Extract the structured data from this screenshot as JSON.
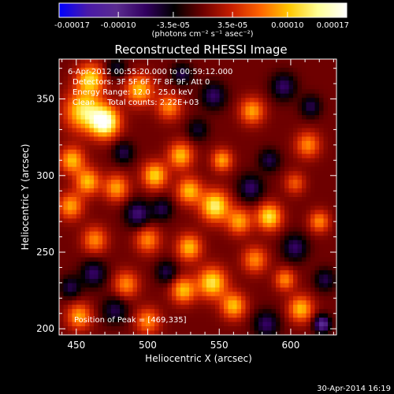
{
  "chart_data": {
    "type": "heatmap",
    "title": "Reconstructed RHESSI Image",
    "xlabel": "Heliocentric X (arcsec)",
    "ylabel": "Heliocentric Y (arcsec)",
    "xlim": [
      438,
      632
    ],
    "ylim": [
      196,
      376
    ],
    "x_ticks": [
      450,
      500,
      550,
      600
    ],
    "y_ticks": [
      200,
      250,
      300,
      350
    ],
    "x_tick_labels": [
      "450",
      "500",
      "550",
      "600"
    ],
    "y_tick_labels": [
      "200",
      "250",
      "300",
      "350"
    ],
    "colorbar": {
      "range": [
        -0.00017,
        0.00017
      ],
      "ticks": [
        -0.00017,
        -0.0001,
        -3.5e-05,
        3.5e-05,
        0.0001,
        0.00017
      ],
      "tick_labels": [
        "-0.00017",
        "-0.00010",
        "-3.5e-05",
        "3.5e-05",
        "0.00010",
        "0.00017"
      ],
      "units_text": "(photons cm⁻² s⁻¹ asec⁻²)",
      "colors": [
        "#0000ff",
        "#4a1aa8",
        "#5a2c8f",
        "#320060",
        "#000000",
        "#6e0000",
        "#c81e00",
        "#ff6400",
        "#ffc800",
        "#ffff96",
        "#ffffff"
      ]
    },
    "info_lines": [
      "6-Apr-2012 00:55:20.000 to 00:59:12.000",
      "Detectors: 3F 5F 6F 7F 8F 9F, Att 0",
      "Energy Range: 12.0 - 25.0 keV",
      "Clean     Total counts: 2.22E+03"
    ],
    "peak_label": "Position of Peak = [469,335]",
    "peak_position": [
      469,
      335
    ],
    "blobs": [
      {
        "x": 470,
        "y": 335,
        "peak": 0.000165,
        "sigma": 7
      },
      {
        "x": 455,
        "y": 342,
        "peak": 0.00012,
        "sigma": 9
      },
      {
        "x": 460,
        "y": 363,
        "peak": 0.00011,
        "sigma": 7
      },
      {
        "x": 494,
        "y": 356,
        "peak": 0.0001,
        "sigma": 7
      },
      {
        "x": 515,
        "y": 345,
        "peak": 8e-05,
        "sigma": 6
      },
      {
        "x": 447,
        "y": 310,
        "peak": 0.0001,
        "sigma": 6
      },
      {
        "x": 458,
        "y": 296,
        "peak": 0.0001,
        "sigma": 6
      },
      {
        "x": 478,
        "y": 292,
        "peak": 9e-05,
        "sigma": 6
      },
      {
        "x": 505,
        "y": 300,
        "peak": 0.00011,
        "sigma": 6
      },
      {
        "x": 523,
        "y": 313,
        "peak": 0.0001,
        "sigma": 6
      },
      {
        "x": 552,
        "y": 310,
        "peak": 9e-05,
        "sigma": 5
      },
      {
        "x": 573,
        "y": 342,
        "peak": 9e-05,
        "sigma": 6
      },
      {
        "x": 612,
        "y": 320,
        "peak": 8e-05,
        "sigma": 6
      },
      {
        "x": 547,
        "y": 280,
        "peak": 0.00013,
        "sigma": 7
      },
      {
        "x": 529,
        "y": 290,
        "peak": 0.0001,
        "sigma": 6
      },
      {
        "x": 564,
        "y": 270,
        "peak": 9e-05,
        "sigma": 6
      },
      {
        "x": 585,
        "y": 273,
        "peak": 0.00012,
        "sigma": 6
      },
      {
        "x": 500,
        "y": 258,
        "peak": 8e-05,
        "sigma": 6
      },
      {
        "x": 529,
        "y": 253,
        "peak": 0.0001,
        "sigma": 6
      },
      {
        "x": 463,
        "y": 258,
        "peak": 8e-05,
        "sigma": 6
      },
      {
        "x": 446,
        "y": 280,
        "peak": 9e-05,
        "sigma": 6
      },
      {
        "x": 545,
        "y": 230,
        "peak": 0.00012,
        "sigma": 7
      },
      {
        "x": 525,
        "y": 225,
        "peak": 0.0001,
        "sigma": 6
      },
      {
        "x": 560,
        "y": 215,
        "peak": 0.0001,
        "sigma": 6
      },
      {
        "x": 575,
        "y": 245,
        "peak": 8e-05,
        "sigma": 6
      },
      {
        "x": 607,
        "y": 213,
        "peak": 0.0001,
        "sigma": 6
      },
      {
        "x": 596,
        "y": 232,
        "peak": 8e-05,
        "sigma": 5
      },
      {
        "x": 485,
        "y": 229,
        "peak": 8e-05,
        "sigma": 6
      },
      {
        "x": 500,
        "y": 205,
        "peak": 8e-05,
        "sigma": 6
      },
      {
        "x": 452,
        "y": 208,
        "peak": 9e-05,
        "sigma": 6
      },
      {
        "x": 620,
        "y": 270,
        "peak": 8e-05,
        "sigma": 5
      },
      {
        "x": 603,
        "y": 295,
        "peak": 6e-05,
        "sigma": 5
      },
      {
        "x": 462,
        "y": 236,
        "peak": -7e-05,
        "sigma": 6
      },
      {
        "x": 493,
        "y": 275,
        "peak": -8e-05,
        "sigma": 6
      },
      {
        "x": 510,
        "y": 278,
        "peak": -6e-05,
        "sigma": 5
      },
      {
        "x": 572,
        "y": 292,
        "peak": -7e-05,
        "sigma": 6
      },
      {
        "x": 585,
        "y": 310,
        "peak": -6e-05,
        "sigma": 5
      },
      {
        "x": 595,
        "y": 358,
        "peak": -7e-05,
        "sigma": 6
      },
      {
        "x": 546,
        "y": 352,
        "peak": -7e-05,
        "sigma": 6
      },
      {
        "x": 614,
        "y": 345,
        "peak": -6e-05,
        "sigma": 5
      },
      {
        "x": 603,
        "y": 253,
        "peak": -7e-05,
        "sigma": 6
      },
      {
        "x": 583,
        "y": 203,
        "peak": -7e-05,
        "sigma": 6
      },
      {
        "x": 622,
        "y": 203,
        "peak": -0.00011,
        "sigma": 4
      },
      {
        "x": 624,
        "y": 232,
        "peak": -6e-05,
        "sigma": 5
      },
      {
        "x": 513,
        "y": 237,
        "peak": -6e-05,
        "sigma": 5
      },
      {
        "x": 477,
        "y": 212,
        "peak": -6e-05,
        "sigma": 6
      },
      {
        "x": 524,
        "y": 366,
        "peak": -6e-05,
        "sigma": 5
      },
      {
        "x": 478,
        "y": 370,
        "peak": -5e-05,
        "sigma": 5
      },
      {
        "x": 446,
        "y": 227,
        "peak": -6e-05,
        "sigma": 5
      },
      {
        "x": 483,
        "y": 315,
        "peak": -6e-05,
        "sigma": 5
      },
      {
        "x": 535,
        "y": 330,
        "peak": -5e-05,
        "sigma": 5
      }
    ]
  },
  "footer": {
    "timestamp": "30-Apr-2014 16:19"
  }
}
